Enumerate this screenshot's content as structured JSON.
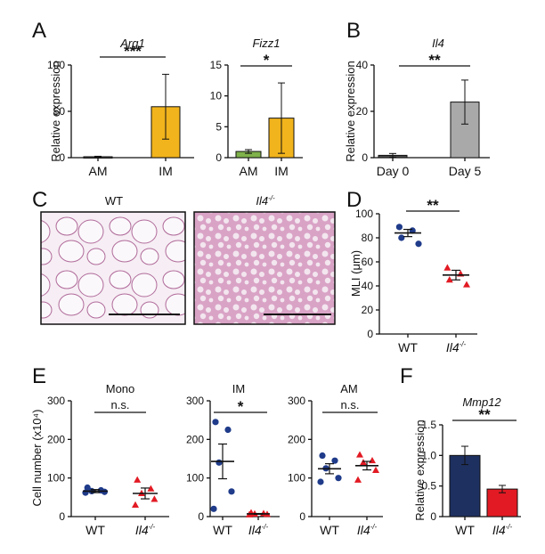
{
  "panel_labels": {
    "A": "A",
    "B": "B",
    "C": "C",
    "D": "D",
    "E": "E",
    "F": "F"
  },
  "images": {
    "wt": {
      "title": "WT",
      "description": "Lung histology H&E, WT"
    },
    "ko": {
      "title_main": "Il4",
      "title_sup": "-/-",
      "description": "Lung histology H&E, Il4-/-"
    }
  },
  "colors": {
    "am_gray": "#4a4a4a",
    "im_yellow": "#f2b41c",
    "fizz_green": "#7fb24a",
    "gray_bar": "#a9a9a9",
    "navy": "#1e3060",
    "red": "#e21a23",
    "dot_blue": "#1f3b8a"
  },
  "chart_data": [
    {
      "id": "A1",
      "type": "bar",
      "title": "Arg1",
      "ylabel": "Relative expression",
      "categories": [
        "AM",
        "IM"
      ],
      "values": [
        1,
        55
      ],
      "errors": [
        0.5,
        35
      ],
      "ylim": [
        0,
        100
      ],
      "yticks": [
        0,
        50,
        100
      ],
      "sig": "***",
      "colors": [
        "#4a4a4a",
        "#f2b41c"
      ]
    },
    {
      "id": "A2",
      "type": "bar",
      "title": "Fizz1",
      "ylabel": "",
      "categories": [
        "AM",
        "IM"
      ],
      "values": [
        1,
        6.4
      ],
      "errors": [
        0.3,
        5.7
      ],
      "ylim": [
        0,
        15
      ],
      "yticks": [
        0,
        5,
        10,
        15
      ],
      "sig": "*",
      "colors": [
        "#7fb24a",
        "#f2b41c"
      ]
    },
    {
      "id": "B",
      "type": "bar",
      "title": "Il4",
      "ylabel": "Relative expression",
      "categories": [
        "Day 0",
        "Day 5"
      ],
      "values": [
        1,
        24
      ],
      "errors": [
        0.8,
        9.5
      ],
      "ylim": [
        0,
        40
      ],
      "yticks": [
        0,
        20,
        40
      ],
      "sig": "**",
      "colors": [
        "#4a4a4a",
        "#a9a9a9"
      ]
    },
    {
      "id": "D",
      "type": "scatter",
      "title": "",
      "ylabel": "MLI (μm)",
      "categories": [
        "WT",
        "Il4"
      ],
      "cat_sup": [
        "",
        "-/-"
      ],
      "ylim": [
        0,
        100
      ],
      "yticks": [
        0,
        20,
        40,
        60,
        80,
        100
      ],
      "sig": "**",
      "series": [
        {
          "name": "WT",
          "points": [
            89,
            86,
            80,
            75
          ],
          "mean": 84,
          "sem": 3,
          "color": "#1f3b8a",
          "shape": "circle"
        },
        {
          "name": "Il4-/-",
          "points": [
            55,
            50,
            45,
            41
          ],
          "mean": 49,
          "sem": 4,
          "color": "#e21a23",
          "shape": "triangle"
        }
      ]
    },
    {
      "id": "E1",
      "type": "scatter",
      "title": "Mono",
      "ylabel": "Cell number (x10⁴)",
      "categories": [
        "WT",
        "Il4"
      ],
      "cat_sup": [
        "",
        "-/-"
      ],
      "ylim": [
        0,
        300
      ],
      "yticks": [
        0,
        100,
        200,
        300
      ],
      "sig": "n.s.",
      "series": [
        {
          "name": "WT",
          "points": [
            75,
            68,
            66,
            64,
            62
          ],
          "mean": 66,
          "sem": 4,
          "color": "#1f3b8a",
          "shape": "circle"
        },
        {
          "name": "Il4-/-",
          "points": [
            95,
            72,
            60,
            45,
            30
          ],
          "mean": 60,
          "sem": 14,
          "color": "#e21a23",
          "shape": "triangle"
        }
      ]
    },
    {
      "id": "E2",
      "type": "scatter",
      "title": "IM",
      "ylabel": "",
      "categories": [
        "WT",
        "Il4"
      ],
      "cat_sup": [
        "",
        "-/-"
      ],
      "ylim": [
        0,
        300
      ],
      "yticks": [
        0,
        100,
        200,
        300
      ],
      "sig": "*",
      "series": [
        {
          "name": "WT",
          "points": [
            245,
            225,
            140,
            65,
            20
          ],
          "mean": 143,
          "sem": 45,
          "color": "#1f3b8a",
          "shape": "circle"
        },
        {
          "name": "Il4-/-",
          "points": [
            10,
            8,
            7,
            6,
            5
          ],
          "mean": 7,
          "sem": 1,
          "color": "#e21a23",
          "shape": "triangle"
        }
      ]
    },
    {
      "id": "E3",
      "type": "scatter",
      "title": "AM",
      "ylabel": "",
      "categories": [
        "WT",
        "Il4"
      ],
      "cat_sup": [
        "",
        "-/-"
      ],
      "ylim": [
        0,
        300
      ],
      "yticks": [
        0,
        100,
        200,
        300
      ],
      "sig": "n.s.",
      "series": [
        {
          "name": "WT",
          "points": [
            158,
            145,
            125,
            100,
            90
          ],
          "mean": 124,
          "sem": 13,
          "color": "#1f3b8a",
          "shape": "circle"
        },
        {
          "name": "Il4-/-",
          "points": [
            160,
            145,
            140,
            120,
            95
          ],
          "mean": 132,
          "sem": 11,
          "color": "#e21a23",
          "shape": "triangle"
        }
      ]
    },
    {
      "id": "F",
      "type": "bar",
      "title": "Mmp12",
      "ylabel": "Relative expression",
      "categories": [
        "WT",
        "Il4"
      ],
      "cat_sup": [
        "",
        "-/-"
      ],
      "values": [
        1.0,
        0.45
      ],
      "errors": [
        0.15,
        0.06
      ],
      "ylim": [
        0,
        1.5
      ],
      "yticks": [
        "0",
        "0.5",
        "1.0",
        "1.5"
      ],
      "sig": "**",
      "colors": [
        "#1e3060",
        "#e21a23"
      ]
    }
  ]
}
